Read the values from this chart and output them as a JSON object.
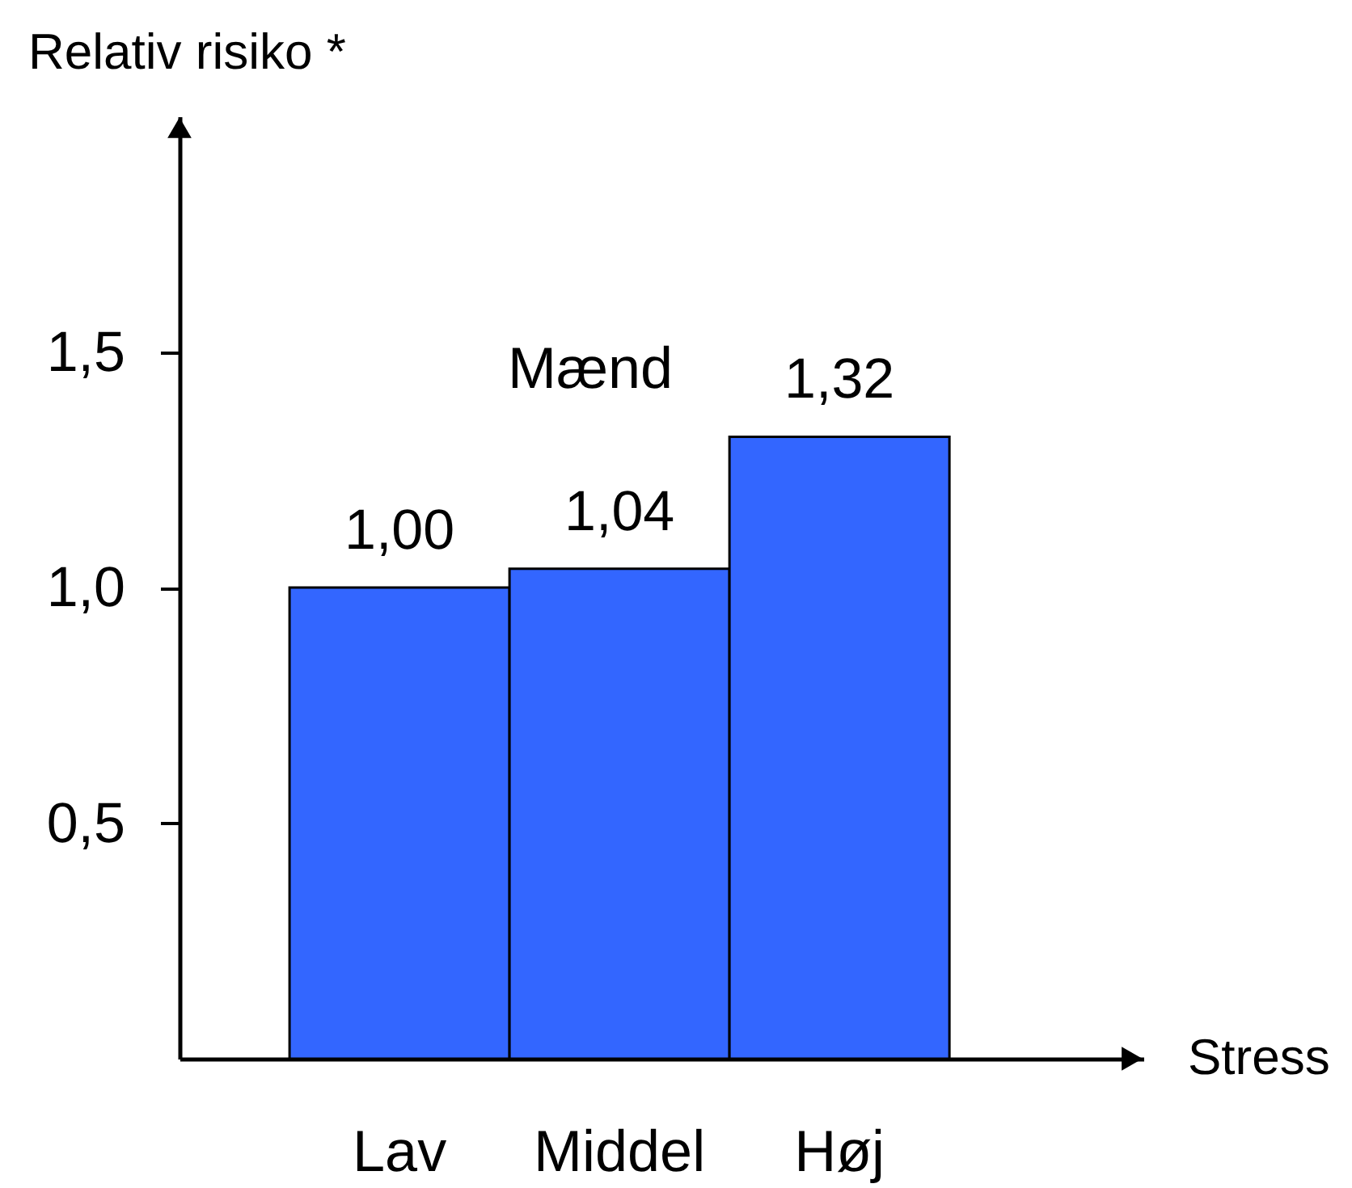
{
  "chart_data": {
    "type": "bar",
    "ylabel": "Relativ risiko *",
    "xlabel": "Stress",
    "categories": [
      "Lav",
      "Middel",
      "Høj"
    ],
    "values": [
      1.0,
      1.04,
      1.32
    ],
    "color": "#3366ff",
    "value_labels": [
      "1,00",
      "1,04",
      "1,32"
    ],
    "ylim": [
      0,
      2.0
    ],
    "yticks": [
      {
        "value": 0.5,
        "label": "0,5"
      },
      {
        "value": 1.0,
        "label": "1,0"
      },
      {
        "value": 1.5,
        "label": "1,5"
      }
    ],
    "annotations": [
      "Mænd"
    ]
  }
}
